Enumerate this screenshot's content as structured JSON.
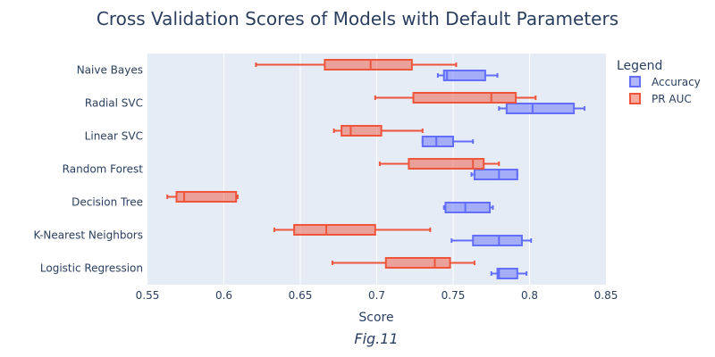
{
  "chart_data": {
    "type": "box",
    "orientation": "horizontal",
    "title": "Cross Validation Scores of Models with Default Parameters",
    "xlabel": "Score",
    "ylabel": "",
    "caption": "Fig.11",
    "xlim": [
      0.55,
      0.85
    ],
    "x_ticks": [
      0.55,
      0.6,
      0.65,
      0.7,
      0.75,
      0.8,
      0.85
    ],
    "x_tick_labels": [
      "0.55",
      "0.6",
      "0.65",
      "0.7",
      "0.75",
      "0.8",
      "0.85"
    ],
    "grid": true,
    "legend_title": "Legend",
    "legend_position": "top-right",
    "categories": [
      "Naive Bayes",
      "Radial SVC",
      "Linear SVC",
      "Random Forest",
      "Decision Tree",
      "K-Nearest Neighbors",
      "Logistic Regression"
    ],
    "series": [
      {
        "name": "Accuracy",
        "color": "#636efa",
        "boxes": [
          {
            "min": 0.74,
            "q1": 0.744,
            "median": 0.746,
            "q3": 0.771,
            "max": 0.779
          },
          {
            "min": 0.78,
            "q1": 0.785,
            "median": 0.802,
            "q3": 0.829,
            "max": 0.836
          },
          {
            "min": 0.73,
            "q1": 0.73,
            "median": 0.739,
            "q3": 0.75,
            "max": 0.763
          },
          {
            "min": 0.762,
            "q1": 0.764,
            "median": 0.78,
            "q3": 0.792,
            "max": 0.792
          },
          {
            "min": 0.744,
            "q1": 0.745,
            "median": 0.758,
            "q3": 0.774,
            "max": 0.776
          },
          {
            "min": 0.749,
            "q1": 0.763,
            "median": 0.78,
            "q3": 0.795,
            "max": 0.801
          },
          {
            "min": 0.775,
            "q1": 0.779,
            "median": 0.78,
            "q3": 0.792,
            "max": 0.798
          }
        ]
      },
      {
        "name": "PR AUC",
        "color": "#ef553b",
        "boxes": [
          {
            "min": 0.621,
            "q1": 0.666,
            "median": 0.696,
            "q3": 0.723,
            "max": 0.752
          },
          {
            "min": 0.699,
            "q1": 0.724,
            "median": 0.775,
            "q3": 0.791,
            "max": 0.804
          },
          {
            "min": 0.672,
            "q1": 0.677,
            "median": 0.683,
            "q3": 0.703,
            "max": 0.73
          },
          {
            "min": 0.702,
            "q1": 0.721,
            "median": 0.763,
            "q3": 0.77,
            "max": 0.78
          },
          {
            "min": 0.563,
            "q1": 0.569,
            "median": 0.574,
            "q3": 0.608,
            "max": 0.609
          },
          {
            "min": 0.633,
            "q1": 0.646,
            "median": 0.667,
            "q3": 0.699,
            "max": 0.735
          },
          {
            "min": 0.671,
            "q1": 0.706,
            "median": 0.738,
            "q3": 0.748,
            "max": 0.764
          }
        ]
      }
    ]
  }
}
